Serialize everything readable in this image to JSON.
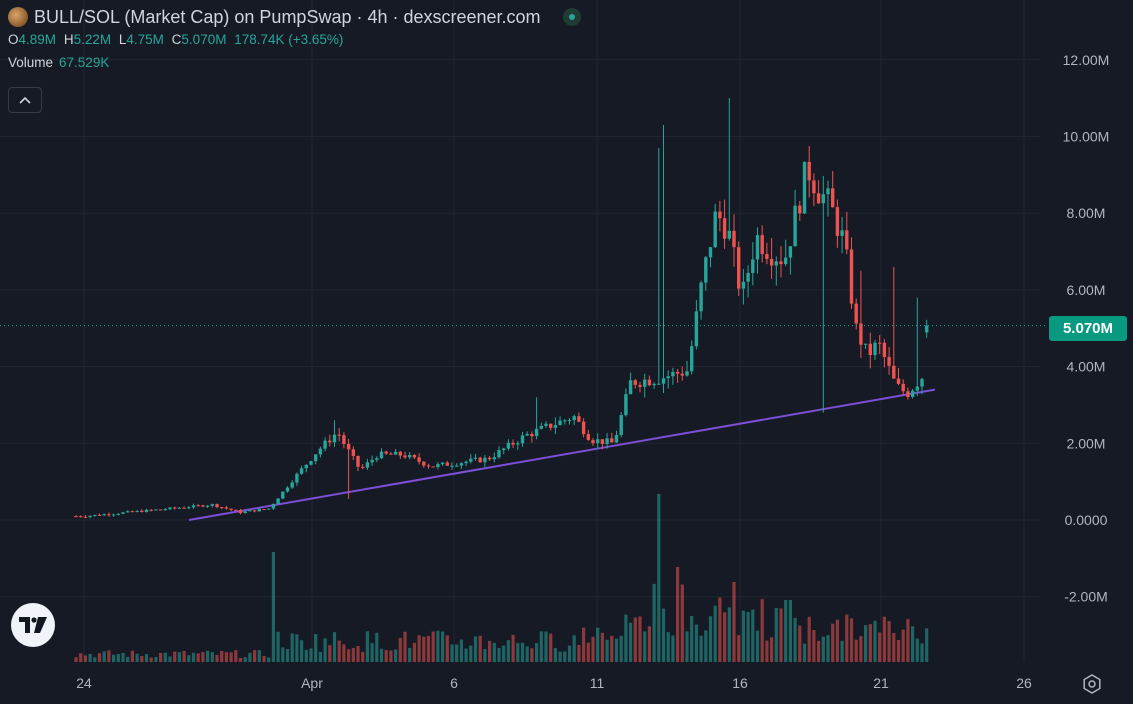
{
  "header": {
    "title": "BULL/SOL (Market Cap) on PumpSwap · 4h · dexscreener.com",
    "ohlc": {
      "o_label": "O",
      "o_value": "4.89M",
      "h_label": "H",
      "h_value": "5.22M",
      "l_label": "L",
      "l_value": "4.75M",
      "c_label": "C",
      "c_value": "5.070M",
      "change": "178.74K (+3.65%)"
    },
    "volume_label": "Volume",
    "volume_value": "67.529K"
  },
  "current_price_label": "5.070M",
  "icons": {
    "status": "live-status-dot-icon",
    "collapse": "chevron-up-icon",
    "logo": "tradingview-logo-icon",
    "settings": "settings-gear-icon"
  },
  "colors": {
    "background": "#161a25",
    "up": "#26a69a",
    "down": "#ef5350",
    "trendline": "#7b4fd6",
    "price_tag": "#089981"
  },
  "chart_data": {
    "type": "candlestick",
    "timeframe": "4h",
    "y_axis": {
      "ticks": [
        -2000000,
        0,
        2000000,
        4000000,
        6000000,
        8000000,
        10000000,
        12000000
      ],
      "tick_labels": [
        "-2.00M",
        "0.0000",
        "2.00M",
        "4.00M",
        "6.00M",
        "8.00M",
        "10.00M",
        "12.00M"
      ],
      "range": [
        -3700000,
        12400000
      ]
    },
    "x_axis": {
      "tick_labels": [
        "24",
        "Apr",
        "6",
        "11",
        "16",
        "21",
        "26"
      ]
    },
    "key_points": [
      {
        "date": "Mar 24",
        "close": 100000
      },
      {
        "date": "Mar 30",
        "close": 300000
      },
      {
        "date": "Apr 1",
        "close": 2300000
      },
      {
        "date": "Apr 2",
        "low": 550000
      },
      {
        "date": "Apr 8",
        "close": 2700000
      },
      {
        "date": "Apr 10",
        "close": 2000000
      },
      {
        "date": "Apr 11",
        "close": 3600000
      },
      {
        "date": "Apr 13",
        "close": 8000000
      },
      {
        "date": "Apr 13",
        "high": 10200000
      },
      {
        "date": "Apr 15",
        "high": 11000000
      },
      {
        "date": "Apr 17",
        "close": 4400000
      },
      {
        "date": "Apr 19",
        "low": 2800000
      },
      {
        "date": "Apr 21",
        "high": 6600000
      },
      {
        "date": "Apr 22",
        "close": 5070000
      }
    ],
    "last": {
      "open": 4890000,
      "high": 5220000,
      "low": 4750000,
      "close": 5070000
    },
    "volume": {
      "last": 67529,
      "max_bar_date": "Apr 13"
    },
    "trendline": {
      "from": {
        "date": "Mar 28",
        "value": 0
      },
      "to": {
        "date": "Apr 23",
        "value": 3400000
      }
    },
    "title": "BULL/SOL (Market Cap) on PumpSwap · 4h · dexscreener.com",
    "grid": true,
    "legend": "top-left"
  }
}
